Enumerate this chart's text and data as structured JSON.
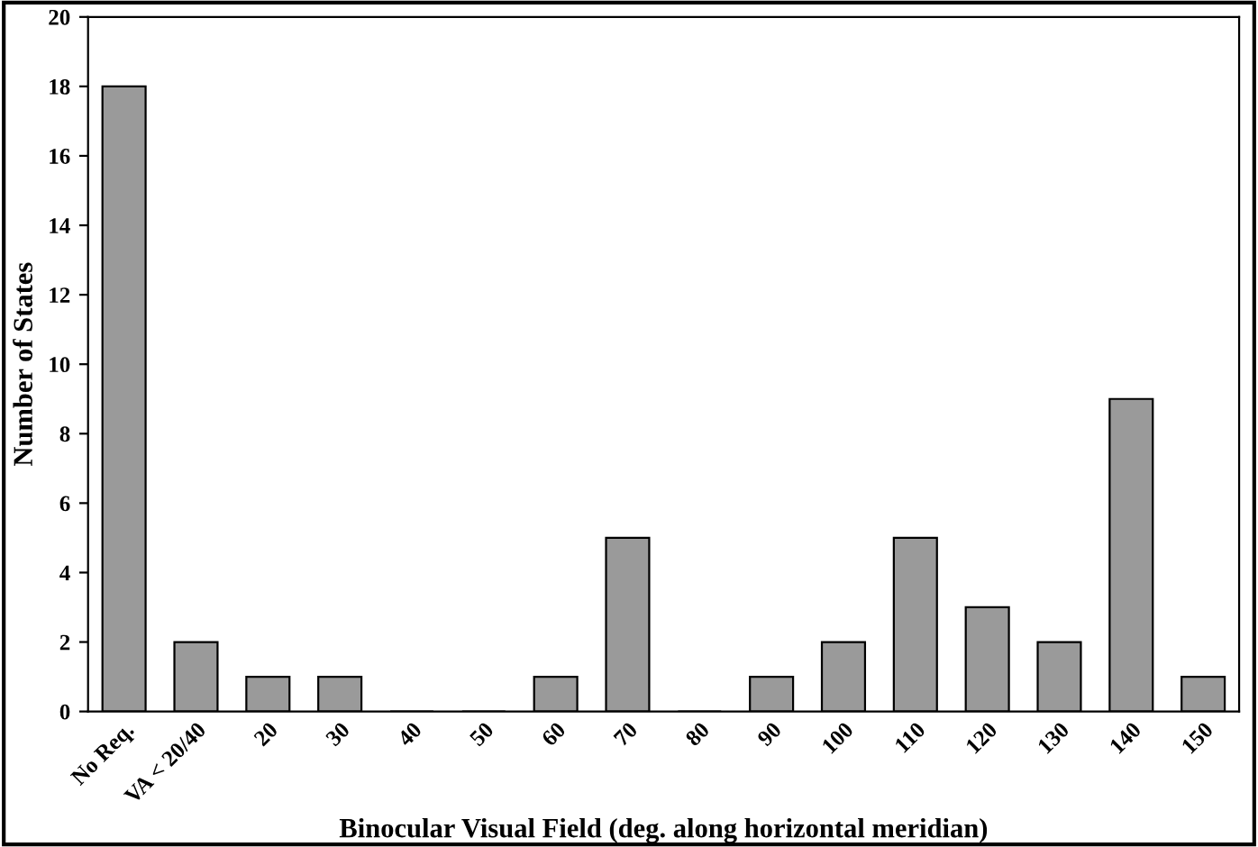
{
  "chart_data": {
    "type": "bar",
    "xlabel": "Binocular Visual Field (deg. along horizontal meridian)",
    "ylabel": "Number of States",
    "categories": [
      "No Req.",
      "VA < 20/40",
      "20",
      "30",
      "40",
      "50",
      "60",
      "70",
      "80",
      "90",
      "100",
      "110",
      "120",
      "130",
      "140",
      "150"
    ],
    "values": [
      18,
      2,
      1,
      1,
      0,
      0,
      1,
      5,
      0,
      1,
      2,
      5,
      3,
      2,
      9,
      1
    ],
    "color": "#9a9a9a",
    "ylim": [
      0,
      20
    ],
    "yticks": [
      0,
      2,
      4,
      6,
      8,
      10,
      12,
      14,
      16,
      18,
      20
    ],
    "grid": false,
    "legend": false
  }
}
